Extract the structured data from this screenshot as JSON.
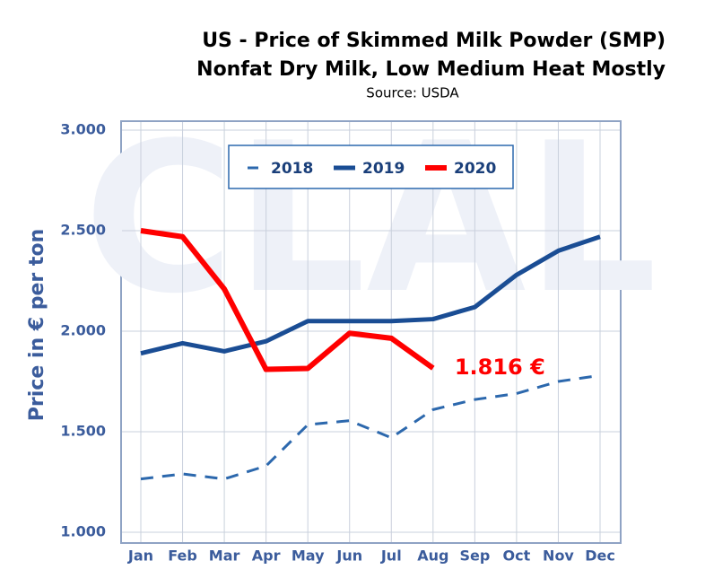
{
  "chart_data": {
    "type": "line",
    "title": "US - Price of Skimmed Milk Powder (SMP)",
    "subtitle": "Nonfat Dry Milk, Low Medium Heat Mostly",
    "source": "Source: USDA",
    "ylabel": "Price in € per ton",
    "watermark": "CLAL",
    "categories": [
      "Jan",
      "Feb",
      "Mar",
      "Apr",
      "May",
      "Jun",
      "Jul",
      "Aug",
      "Sep",
      "Oct",
      "Nov",
      "Dec"
    ],
    "series": [
      {
        "name": "2018",
        "color": "#2c68ad",
        "dashed": true,
        "values": [
          1265,
          1290,
          1265,
          1330,
          1535,
          1555,
          1470,
          1610,
          1660,
          1690,
          1750,
          1780
        ]
      },
      {
        "name": "2019",
        "color": "#1a4d94",
        "dashed": false,
        "values": [
          1890,
          1940,
          1900,
          1950,
          2050,
          2050,
          2050,
          2060,
          2120,
          2280,
          2400,
          2470
        ]
      },
      {
        "name": "2020",
        "color": "#ff0000",
        "dashed": false,
        "values": [
          2500,
          2470,
          2210,
          1810,
          1815,
          1990,
          1965,
          1816,
          null,
          null,
          null,
          null
        ]
      }
    ],
    "annotation": "1.816 €",
    "ylim": [
      1000,
      3000
    ],
    "yticks": [
      {
        "value": 1000,
        "label": "1.000"
      },
      {
        "value": 1500,
        "label": "1.500"
      },
      {
        "value": 2000,
        "label": "2.000"
      },
      {
        "value": 2500,
        "label": "2.500"
      },
      {
        "value": 3000,
        "label": "3.000"
      }
    ],
    "grid": true,
    "legend": "top"
  }
}
